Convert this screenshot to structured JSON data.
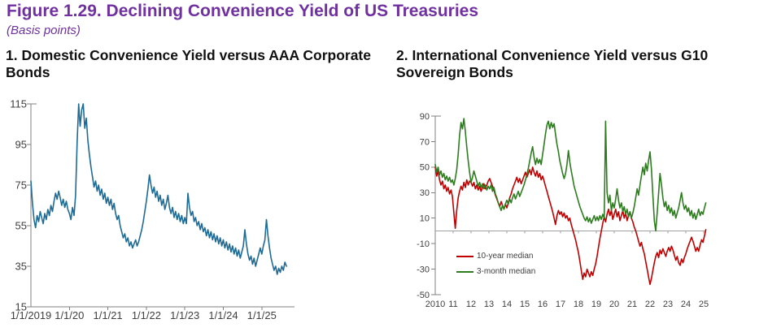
{
  "figure": {
    "title": "Figure 1.29. Declining Convenience Yield of US Treasuries",
    "subtitle": "(Basis points)"
  },
  "colors": {
    "title_purple": "#7030a0",
    "domestic_blue": "#1e6c96",
    "ten_year_red": "#c00000",
    "three_month_green": "#2d7d1f",
    "axis_gray": "#808080",
    "zero_line_gray": "#a0a0a0",
    "label_gray": "#404040"
  },
  "chart_data": [
    {
      "type": "line",
      "title": "1. Domestic Convenience Yield versus AAA Corporate Bonds",
      "unit": "basis points",
      "xlim": [
        2019.0,
        2025.64
      ],
      "ylim": [
        15,
        115
      ],
      "yticks": [
        115,
        95,
        75,
        55,
        35,
        15
      ],
      "xticks": [
        {
          "label": "1/1/2019",
          "year": 2019
        },
        {
          "label": "1/1/20",
          "year": 2020
        },
        {
          "label": "1/1/21",
          "year": 2021
        },
        {
          "label": "1/1/22",
          "year": 2022
        },
        {
          "label": "1/1/23",
          "year": 2023
        },
        {
          "label": "1/1/24",
          "year": 2024
        },
        {
          "label": "1/1/25",
          "year": 2025
        }
      ],
      "grid": false,
      "series": [
        {
          "name": "domestic-convenience-yield",
          "color": "#1e6c96",
          "x_start": 2019.0,
          "x_step": 0.04,
          "values": [
            77,
            66,
            58,
            54,
            60,
            57,
            62,
            59,
            56,
            61,
            58,
            63,
            60,
            65,
            62,
            67,
            71,
            68,
            72,
            69,
            65,
            68,
            64,
            67,
            63,
            61,
            58,
            64,
            60,
            70,
            96,
            115,
            104,
            112,
            115,
            103,
            108,
            97,
            90,
            84,
            79,
            74,
            77,
            72,
            75,
            70,
            73,
            68,
            71,
            66,
            69,
            65,
            68,
            63,
            66,
            61,
            58,
            60,
            55,
            52,
            49,
            51,
            47,
            49,
            45,
            47,
            44,
            46,
            48,
            45,
            47,
            50,
            53,
            57,
            62,
            67,
            73,
            80,
            75,
            71,
            74,
            69,
            72,
            67,
            70,
            65,
            68,
            63,
            66,
            70,
            64,
            61,
            64,
            59,
            62,
            58,
            61,
            57,
            60,
            56,
            59,
            56,
            71,
            64,
            60,
            62,
            57,
            59,
            55,
            57,
            53,
            56,
            52,
            54,
            50,
            53,
            49,
            52,
            48,
            51,
            47,
            50,
            46,
            49,
            45,
            48,
            44,
            47,
            43,
            46,
            42,
            45,
            41,
            44,
            40,
            43,
            39,
            42,
            45,
            53,
            46,
            41,
            38,
            40,
            36,
            39,
            35,
            38,
            41,
            44,
            41,
            45,
            48,
            58,
            50,
            44,
            39,
            36,
            33,
            35,
            31,
            34,
            32,
            35,
            33,
            37,
            35
          ]
        }
      ]
    },
    {
      "type": "line",
      "title": "2. International Convenience Yield versus G10 Sovereign Bonds",
      "unit": "basis points",
      "xlim": [
        2010.0,
        2025.12
      ],
      "ylim": [
        -50,
        90
      ],
      "yticks": [
        90,
        70,
        50,
        30,
        10,
        -10,
        -30,
        -50
      ],
      "xticks": [
        {
          "label": "2010",
          "year": 2010
        },
        {
          "label": "11",
          "year": 2011
        },
        {
          "label": "12",
          "year": 2012
        },
        {
          "label": "13",
          "year": 2013
        },
        {
          "label": "14",
          "year": 2014
        },
        {
          "label": "15",
          "year": 2015
        },
        {
          "label": "16",
          "year": 2016
        },
        {
          "label": "17",
          "year": 2017
        },
        {
          "label": "18",
          "year": 2018
        },
        {
          "label": "19",
          "year": 2019
        },
        {
          "label": "20",
          "year": 2020
        },
        {
          "label": "21",
          "year": 2021
        },
        {
          "label": "22",
          "year": 2022
        },
        {
          "label": "23",
          "year": 2023
        },
        {
          "label": "24",
          "year": 2024
        },
        {
          "label": "25",
          "year": 2025
        }
      ],
      "grid": false,
      "zero_line": true,
      "legend_position": "inside-lower-left",
      "legend": [
        {
          "label": "10-year median",
          "color": "#c00000"
        },
        {
          "label": "3-month median",
          "color": "#2d7d1f"
        }
      ],
      "series": [
        {
          "name": "10-year-median",
          "color": "#c00000",
          "x_start": 2010.0,
          "x_step": 0.08,
          "values": [
            50,
            43,
            47,
            40,
            36,
            39,
            33,
            36,
            31,
            34,
            29,
            32,
            27,
            14,
            2,
            16,
            26,
            31,
            35,
            32,
            38,
            34,
            40,
            36,
            39,
            38,
            35,
            38,
            33,
            36,
            32,
            35,
            31,
            34,
            37,
            33,
            36,
            39,
            41,
            38,
            35,
            32,
            28,
            25,
            22,
            19,
            23,
            20,
            17,
            21,
            18,
            22,
            26,
            29,
            33,
            36,
            39,
            42,
            38,
            41,
            37,
            40,
            43,
            46,
            42,
            45,
            48,
            44,
            50,
            46,
            43,
            47,
            42,
            45,
            40,
            43,
            39,
            35,
            31,
            27,
            23,
            19,
            15,
            10,
            5,
            12,
            16,
            13,
            15,
            11,
            14,
            10,
            12,
            8,
            10,
            5,
            1,
            -3,
            -7,
            -12,
            -17,
            -24,
            -31,
            -38,
            -33,
            -36,
            -30,
            -33,
            -36,
            -32,
            -35,
            -30,
            -26,
            -20,
            -13,
            -6,
            0,
            6,
            11,
            7,
            13,
            17,
            12,
            16,
            9,
            13,
            17,
            11,
            15,
            8,
            12,
            16,
            10,
            14,
            8,
            12,
            15,
            10,
            7,
            3,
            0,
            -4,
            -8,
            -12,
            -9,
            -14,
            -18,
            -24,
            -30,
            -36,
            -42,
            -37,
            -31,
            -25,
            -20,
            -17,
            -21,
            -15,
            -18,
            -14,
            -17,
            -20,
            -16,
            -13,
            -16,
            -12,
            -15,
            -19,
            -23,
            -20,
            -25,
            -27,
            -22,
            -25,
            -21,
            -18,
            -14,
            -11,
            -8,
            -5,
            -8,
            -12,
            -16,
            -13,
            -16,
            -11,
            -7,
            -9,
            -4,
            1
          ]
        },
        {
          "name": "3-month-median",
          "color": "#2d7d1f",
          "x_start": 2010.0,
          "x_step": 0.08,
          "values": [
            52,
            46,
            50,
            44,
            47,
            42,
            45,
            40,
            43,
            39,
            42,
            38,
            40,
            36,
            41,
            48,
            60,
            75,
            85,
            80,
            88,
            78,
            66,
            55,
            46,
            38,
            42,
            47,
            43,
            39,
            35,
            38,
            34,
            37,
            33,
            36,
            32,
            35,
            33,
            36,
            31,
            34,
            29,
            26,
            22,
            19,
            16,
            20,
            17,
            21,
            24,
            21,
            25,
            22,
            26,
            29,
            25,
            28,
            31,
            27,
            30,
            33,
            36,
            40,
            44,
            49,
            55,
            61,
            66,
            58,
            52,
            57,
            53,
            56,
            52,
            60,
            68,
            76,
            83,
            86,
            80,
            85,
            81,
            84,
            76,
            68,
            62,
            55,
            50,
            45,
            41,
            45,
            52,
            63,
            54,
            47,
            41,
            35,
            31,
            27,
            23,
            19,
            16,
            13,
            10,
            8,
            11,
            7,
            10,
            6,
            9,
            12,
            8,
            11,
            8,
            12,
            9,
            13,
            10,
            86,
            30,
            22,
            28,
            16,
            22,
            18,
            25,
            33,
            24,
            18,
            22,
            15,
            19,
            13,
            17,
            11,
            15,
            10,
            14,
            19,
            26,
            33,
            28,
            36,
            43,
            50,
            44,
            53,
            47,
            55,
            62,
            48,
            28,
            8,
            0,
            14,
            30,
            45,
            36,
            26,
            19,
            23,
            16,
            20,
            14,
            18,
            12,
            16,
            10,
            14,
            18,
            24,
            30,
            22,
            17,
            20,
            15,
            18,
            12,
            16,
            10,
            14,
            9,
            13,
            17,
            12,
            15,
            13,
            18,
            22
          ]
        }
      ]
    }
  ]
}
